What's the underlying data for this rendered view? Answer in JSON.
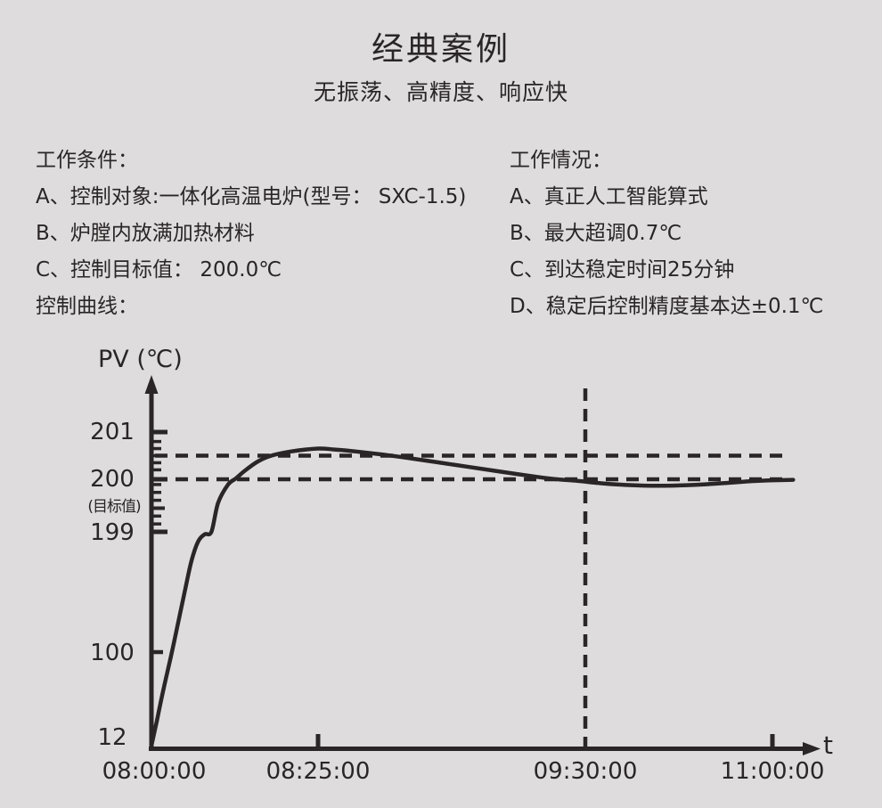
{
  "page": {
    "title": "经典案例",
    "subtitle": "无振荡、高精度、响应快"
  },
  "conditions": {
    "heading": "工作条件：",
    "items": [
      "A、控制对象:一体化高温电炉(型号： SXC-1.5)",
      "B、炉膛内放满加热材料",
      "C、控制目标值： 200.0℃"
    ],
    "curve_label": "控制曲线："
  },
  "results": {
    "heading": "工作情况：",
    "items": [
      "A、真正人工智能算式",
      "B、最大超调0.7℃",
      "C、到达稳定时间25分钟",
      "D、稳定后控制精度基本达±0.1℃"
    ]
  },
  "chart_data": {
    "type": "line",
    "title": "控制曲线",
    "xlabel": "t",
    "ylabel": "PV (℃)",
    "x_ticks": [
      "08:00:00",
      "08:25:00",
      "09:30:00",
      "11:00:00"
    ],
    "y_ticks": [
      "201",
      "200",
      "199",
      "100",
      "12"
    ],
    "target_value": 200.0,
    "target_label": "(目标值)",
    "max_overshoot_degC": 0.7,
    "reference_lines": {
      "horizontal_pv": [
        200.5,
        200.0
      ],
      "vertical_time": "09:30:00"
    },
    "series": [
      {
        "name": "PV",
        "x_unit": "minutes since 08:00:00",
        "y_unit": "°C",
        "points": [
          [
            0,
            12
          ],
          [
            0.8,
            35
          ],
          [
            1.8,
            65
          ],
          [
            3,
            98
          ],
          [
            4,
            124
          ],
          [
            5,
            150
          ],
          [
            6,
            175
          ],
          [
            7,
            191
          ],
          [
            8,
            197
          ],
          [
            9,
            199
          ],
          [
            10,
            199.55
          ],
          [
            11.5,
            199.9
          ],
          [
            12.7,
            200.02
          ],
          [
            14,
            200.18
          ],
          [
            16,
            200.38
          ],
          [
            18,
            200.5
          ],
          [
            21,
            200.59
          ],
          [
            25,
            200.65
          ],
          [
            29,
            200.63
          ],
          [
            34,
            200.59
          ],
          [
            40,
            200.53
          ],
          [
            47,
            200.45
          ],
          [
            54,
            200.36
          ],
          [
            61,
            200.27
          ],
          [
            68,
            200.18
          ],
          [
            75,
            200.09
          ],
          [
            82,
            200.01
          ],
          [
            88,
            199.97
          ],
          [
            96,
            199.93
          ],
          [
            106,
            199.9
          ],
          [
            118,
            199.88
          ],
          [
            132,
            199.88
          ],
          [
            146,
            199.9
          ],
          [
            158,
            199.93
          ],
          [
            168,
            199.96
          ],
          [
            178,
            199.98
          ],
          [
            190,
            199.99
          ]
        ]
      }
    ]
  },
  "colors": {
    "background": "#dedcdd",
    "ink": "#2a2526"
  }
}
